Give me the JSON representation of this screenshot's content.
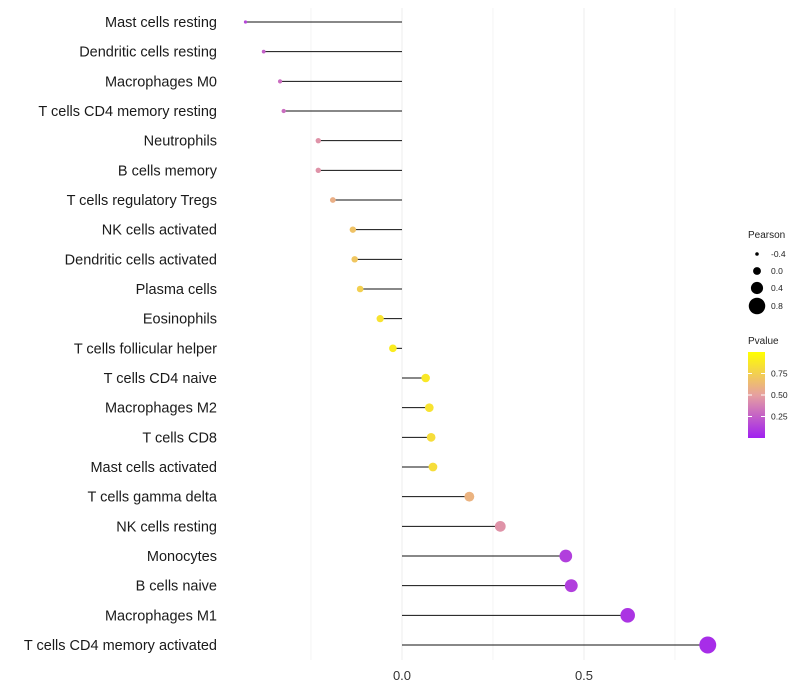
{
  "chart_data": {
    "type": "lollipop",
    "xlabel": "",
    "ylabel": "",
    "xlim": [
      -0.44,
      0.87
    ],
    "xticks": [
      {
        "value": 0.0,
        "label": "0.0"
      },
      {
        "value": 0.5,
        "label": "0.5"
      }
    ],
    "categories": [
      "Mast cells resting",
      "Dendritic cells resting",
      "Macrophages M0",
      "T cells CD4 memory resting",
      "Neutrophils",
      "B cells memory",
      "T cells regulatory  Tregs",
      "NK cells activated",
      "Dendritic cells activated",
      "Plasma cells",
      "Eosinophils",
      "T cells follicular helper",
      "T cells CD4 naive",
      "Macrophages M2",
      "T cells CD8",
      "Mast cells activated",
      "T cells gamma delta",
      "NK cells resting",
      "Monocytes",
      "B cells naive",
      "Macrophages M1",
      "T cells CD4 memory activated"
    ],
    "values": [
      -0.43,
      -0.38,
      -0.335,
      -0.325,
      -0.23,
      -0.23,
      -0.19,
      -0.135,
      -0.13,
      -0.115,
      -0.06,
      -0.025,
      0.065,
      0.075,
      0.08,
      0.085,
      0.185,
      0.27,
      0.45,
      0.465,
      0.62,
      0.84
    ],
    "pvalues": [
      0.15,
      0.25,
      0.3,
      0.3,
      0.45,
      0.45,
      0.58,
      0.68,
      0.7,
      0.75,
      0.85,
      0.9,
      0.88,
      0.85,
      0.82,
      0.82,
      0.6,
      0.45,
      0.12,
      0.12,
      0.08,
      0.05
    ],
    "size_legend": {
      "title": "Pearson",
      "entries": [
        {
          "value": -0.4,
          "label": "-0.4"
        },
        {
          "value": 0.0,
          "label": "0.0"
        },
        {
          "value": 0.4,
          "label": "0.4"
        },
        {
          "value": 0.8,
          "label": "0.8"
        }
      ]
    },
    "color_legend": {
      "title": "Pvalue",
      "low_color": "#a020f0",
      "mid_color": "#e6a0a0",
      "high_color": "#ffff00",
      "ticks": [
        {
          "value": 0.75,
          "label": "0.75"
        },
        {
          "value": 0.5,
          "label": "0.50"
        },
        {
          "value": 0.25,
          "label": "0.25"
        }
      ]
    }
  }
}
